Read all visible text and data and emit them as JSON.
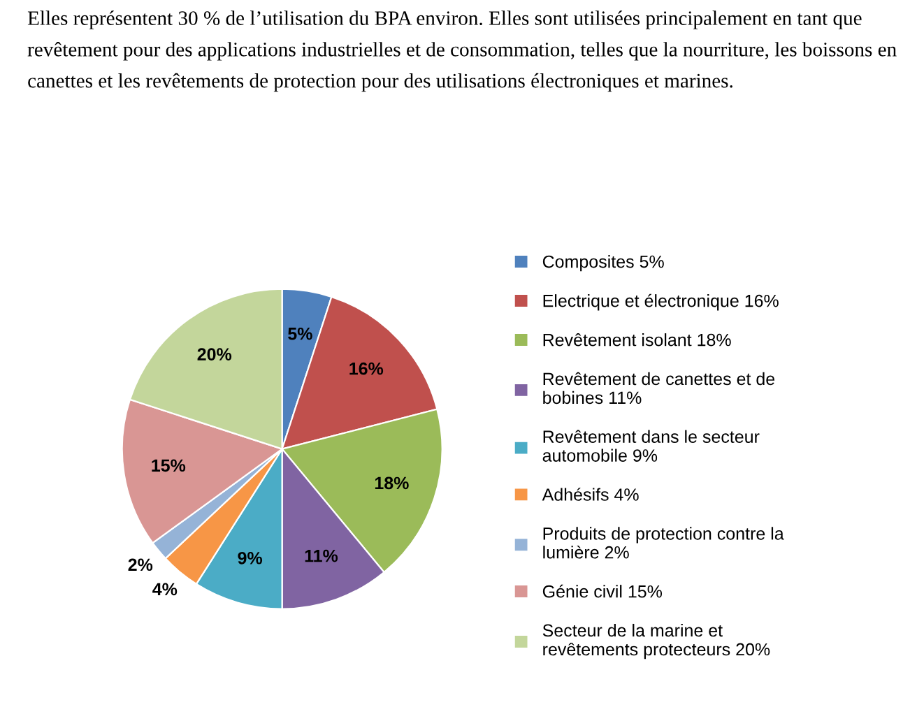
{
  "chart_data": {
    "type": "pie",
    "annotations": [
      "Elles représentent 30 % de l’utilisation du BPA environ. Elles sont utilisées principalement en tant que revêtement pour des applications industrielles et de consommation, telles que la nourriture, les boissons en canettes et les revêtements de protection pour des utilisations électroniques et marines."
    ],
    "categories": [
      "Composites 5%",
      "Electrique et électronique 16%",
      "Revêtement isolant 18%",
      "Revêtement de canettes et de\nbobines 11%",
      "Revêtement dans le secteur\nautomobile 9%",
      "Adhésifs 4%",
      "Produits de protection contre la\nlumière 2%",
      "Génie civil 15%",
      "Secteur de la marine et\nrevêtements protecteurs 20%"
    ],
    "values": [
      5,
      16,
      18,
      11,
      9,
      4,
      2,
      15,
      20
    ],
    "value_labels": [
      "5%",
      "16%",
      "18%",
      "11%",
      "9%",
      "4%",
      "2%",
      "15%",
      "20%"
    ],
    "colors": [
      "#4f81bd",
      "#c0504d",
      "#9bbb59",
      "#8064a2",
      "#4bacc6",
      "#f79646",
      "#95b3d7",
      "#d99694",
      "#c3d69b"
    ],
    "legend": "right"
  }
}
